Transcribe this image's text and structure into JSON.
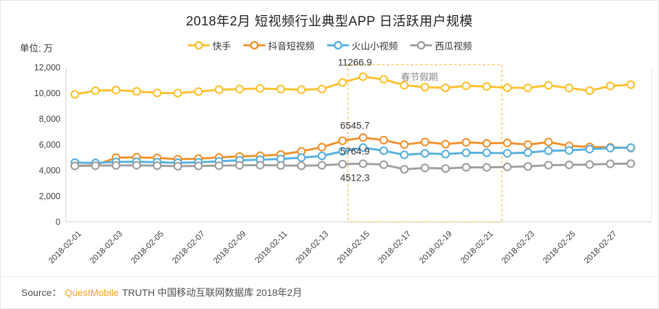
{
  "page": {
    "title": "2018年2月 短视频行业典型APP 日活跃用户规模",
    "unit_label": "单位: 万"
  },
  "colors": {
    "kuaishou": "#FBC12E",
    "douyin": "#F0912D",
    "huoshan": "#57AFDE",
    "xigua": "#9E9E9E",
    "holiday_box": "#EFC24B",
    "axis": "#cccccc",
    "plot_border": "#e6e6e6",
    "tick_text": "#3d3d3d",
    "annotation_text": "#333333",
    "holiday_text": "#8c8c8c",
    "brand_orange": "#F79F1F"
  },
  "legend": [
    {
      "id": "kuaishou",
      "label": "快手"
    },
    {
      "id": "douyin",
      "label": "抖音短视频"
    },
    {
      "id": "huoshan",
      "label": "火山小视频"
    },
    {
      "id": "xigua",
      "label": "西瓜视频"
    }
  ],
  "source": {
    "prefix": "Source：",
    "brand": "QuestMobile",
    "suffix": "TRUTH 中国移动互联网数据库 2018年2月"
  },
  "chart_data": {
    "type": "line",
    "title": "2018年2月 短视频行业典型APP 日活跃用户规模",
    "ylabel": "单位: 万",
    "ylim": [
      0,
      12000
    ],
    "ytick_step": 2000,
    "grid": false,
    "legend_position": "top-center",
    "categories": [
      "2018-02-01",
      "2018-02-02",
      "2018-02-03",
      "2018-02-04",
      "2018-02-05",
      "2018-02-06",
      "2018-02-07",
      "2018-02-08",
      "2018-02-09",
      "2018-02-10",
      "2018-02-11",
      "2018-02-12",
      "2018-02-13",
      "2018-02-14",
      "2018-02-15",
      "2018-02-16",
      "2018-02-17",
      "2018-02-18",
      "2018-02-19",
      "2018-02-20",
      "2018-02-21",
      "2018-02-22",
      "2018-02-23",
      "2018-02-24",
      "2018-02-25",
      "2018-02-26",
      "2018-02-27",
      "2018-02-28"
    ],
    "x_tick_every": 2,
    "series": [
      {
        "id": "kuaishou",
        "name": "快手",
        "values": [
          9900,
          10180,
          10230,
          10130,
          10010,
          10000,
          10110,
          10260,
          10310,
          10350,
          10310,
          10260,
          10310,
          10820,
          11266.9,
          11060,
          10610,
          10460,
          10400,
          10560,
          10500,
          10410,
          10400,
          10600,
          10390,
          10180,
          10550,
          10650
        ]
      },
      {
        "id": "douyin",
        "name": "抖音短视频",
        "values": [
          4340,
          4400,
          4980,
          5010,
          4960,
          4860,
          4900,
          5000,
          5080,
          5130,
          5220,
          5470,
          5800,
          6290,
          6545.7,
          6340,
          5990,
          6200,
          6030,
          6170,
          6090,
          6130,
          5990,
          6190,
          5900,
          5820,
          5790,
          5730
        ]
      },
      {
        "id": "huoshan",
        "name": "火山小视频",
        "values": [
          4600,
          4570,
          4650,
          4660,
          4630,
          4580,
          4620,
          4700,
          4780,
          4820,
          4880,
          4980,
          5120,
          5470,
          5764.9,
          5520,
          5200,
          5310,
          5260,
          5360,
          5360,
          5320,
          5370,
          5520,
          5540,
          5650,
          5730,
          5760
        ]
      },
      {
        "id": "xigua",
        "name": "西瓜视频",
        "values": [
          4340,
          4360,
          4380,
          4390,
          4360,
          4320,
          4340,
          4360,
          4390,
          4400,
          4380,
          4350,
          4390,
          4480,
          4512.3,
          4440,
          4080,
          4180,
          4140,
          4230,
          4230,
          4260,
          4300,
          4400,
          4420,
          4450,
          4500,
          4520
        ]
      }
    ],
    "highlight_box": {
      "label": "春节假期",
      "from": "2018-02-15",
      "to": "2018-02-21"
    },
    "point_labels": [
      {
        "series": "kuaishou",
        "date": "2018-02-15",
        "text": "11266.9"
      },
      {
        "series": "douyin",
        "date": "2018-02-15",
        "text": "6545.7"
      },
      {
        "series": "huoshan",
        "date": "2018-02-15",
        "text": "5764.9"
      },
      {
        "series": "xigua",
        "date": "2018-02-15",
        "text": "4512.3"
      }
    ]
  }
}
